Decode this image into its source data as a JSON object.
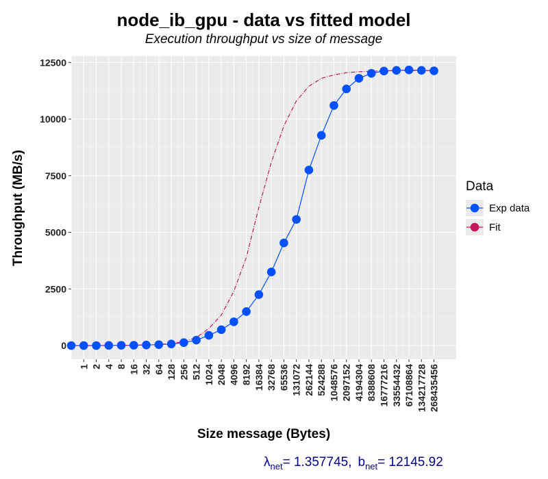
{
  "chart_data": {
    "type": "line",
    "title": "node_ib_gpu - data vs fitted model",
    "subtitle": "Execution throughput vs size of message",
    "xlabel": "Size message (Bytes)",
    "ylabel": "Throughput (MB/s)",
    "x_scale": "log2",
    "categories": [
      "0",
      "1",
      "2",
      "4",
      "8",
      "16",
      "32",
      "64",
      "128",
      "256",
      "512",
      "1024",
      "2048",
      "4096",
      "8192",
      "16384",
      "32768",
      "65536",
      "131072",
      "262144",
      "524288",
      "1048576",
      "2097152",
      "4194304",
      "8388608",
      "16777216",
      "33554432",
      "67108864",
      "134217728",
      "268435456"
    ],
    "x_tick_labels": [
      "1",
      "2",
      "4",
      "8",
      "16",
      "32",
      "64",
      "128",
      "256",
      "512",
      "1024",
      "2048",
      "4096",
      "8192",
      "16384",
      "32768",
      "65536",
      "131072",
      "262144",
      "524288",
      "1048576",
      "2097152",
      "4194304",
      "8388608",
      "16777216",
      "33554432",
      "67108864",
      "134217728",
      "268435456"
    ],
    "ylim": [
      0,
      12500
    ],
    "yticks": [
      0,
      2500,
      5000,
      7500,
      10000,
      12500
    ],
    "grid": true,
    "legend": {
      "title": "Data",
      "placement": "right",
      "entries": [
        {
          "name": "Exp data",
          "color": "#0050ff"
        },
        {
          "name": "Fit",
          "color": "#c2185b"
        }
      ]
    },
    "series": [
      {
        "name": "Exp data",
        "color": "#0050ff",
        "style": "solid-with-points",
        "values": [
          0,
          0,
          0,
          5,
          10,
          15,
          25,
          40,
          70,
          130,
          240,
          450,
          700,
          1050,
          1500,
          2250,
          3250,
          4530,
          5570,
          7750,
          9280,
          10600,
          11330,
          11800,
          12020,
          12120,
          12150,
          12170,
          12150,
          12130
        ]
      },
      {
        "name": "Fit",
        "color": "#c2185b",
        "style": "dashed",
        "values": [
          0,
          0,
          0,
          5,
          10,
          15,
          30,
          50,
          90,
          180,
          350,
          750,
          1350,
          2400,
          3900,
          6100,
          8100,
          9700,
          10800,
          11450,
          11800,
          11950,
          12050,
          12090,
          12110,
          12130,
          12140,
          12145,
          12145,
          12145
        ]
      }
    ],
    "annotation": {
      "lambda_symbol": "λ",
      "lambda_sub": "net",
      "lambda_value": "= 1.357745,",
      "b_symbol": "b",
      "b_sub": "net",
      "b_value": "= 12145.92"
    }
  }
}
